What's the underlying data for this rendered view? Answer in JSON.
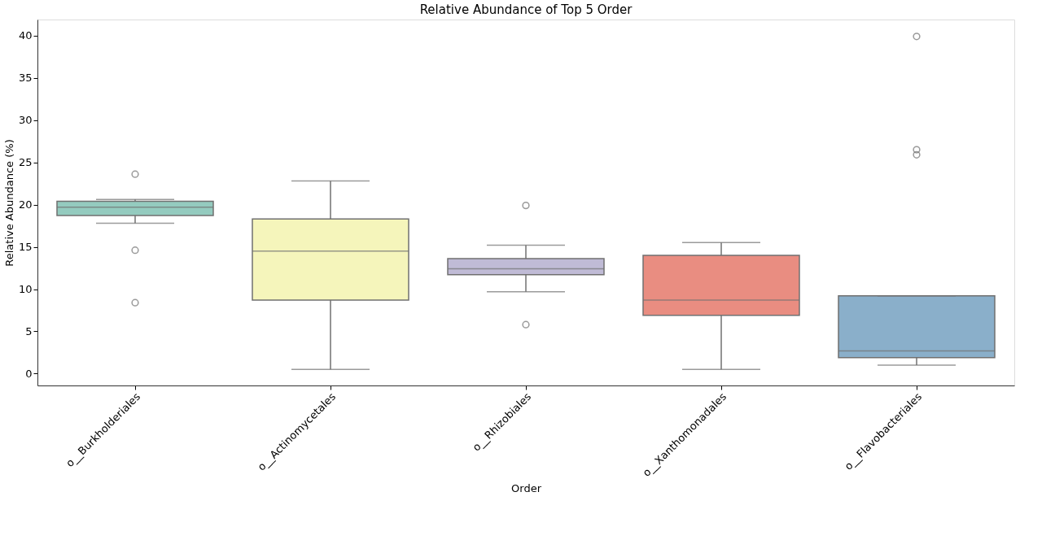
{
  "chart_data": {
    "type": "box",
    "title": "Relative Abundance of Top 5 Order",
    "xlabel": "Order",
    "ylabel": "Relative Abundance (%)",
    "categories": [
      "o__Burkholderiales",
      "o__Actinomycetales",
      "o__Rhizobiales",
      "o__Xanthomonadales",
      "o__Flavobacteriales"
    ],
    "colors": [
      "#94cbbf",
      "#f5f5bb",
      "#c0bbd6",
      "#e98d81",
      "#8aafca"
    ],
    "boxes": [
      {
        "low": 17.8,
        "q1": 18.7,
        "median": 19.7,
        "q3": 20.4,
        "high": 20.6,
        "outliers": [
          23.6,
          14.6,
          8.4
        ]
      },
      {
        "low": 0.5,
        "q1": 8.7,
        "median": 14.5,
        "q3": 18.3,
        "high": 22.8
      },
      {
        "low": 9.7,
        "q1": 11.7,
        "median": 12.4,
        "q3": 13.6,
        "high": 15.2,
        "outliers": [
          19.9,
          5.8
        ]
      },
      {
        "low": 0.5,
        "q1": 6.9,
        "median": 8.7,
        "q3": 14.0,
        "high": 15.5
      },
      {
        "low": 1.0,
        "q1": 1.9,
        "median": 2.7,
        "q3": 9.2,
        "high": 9.2,
        "outliers": [
          39.9,
          26.5,
          25.9
        ]
      }
    ],
    "ylim": [
      -1.4,
      41.9
    ],
    "yticks": [
      0,
      5,
      10,
      15,
      20,
      25,
      30,
      35,
      40
    ],
    "grid": false,
    "legend": false
  }
}
